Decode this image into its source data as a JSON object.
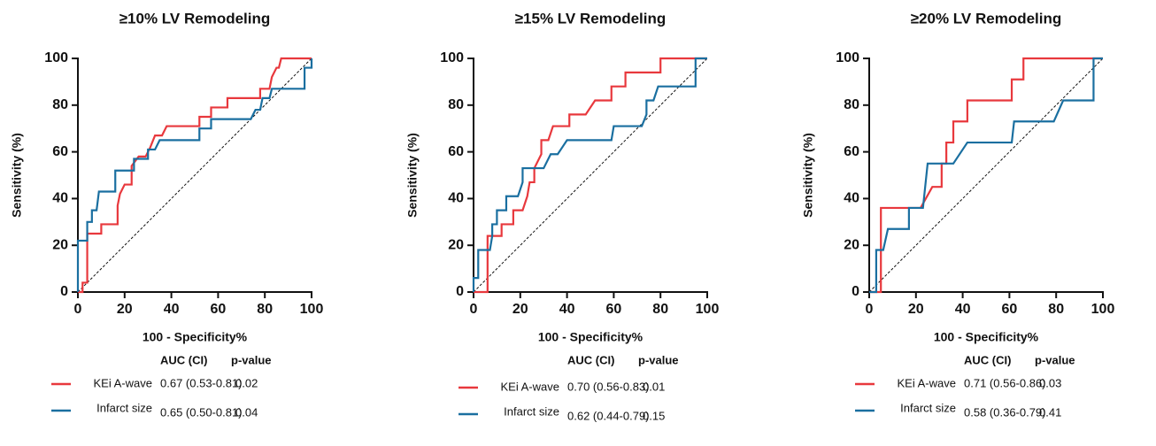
{
  "chart_data": [
    {
      "type": "line",
      "title": "≥10% LV Remodeling",
      "x_label": "100 - Specificity%",
      "y_label": "Sensitivity (%)",
      "xlim": [
        0,
        100
      ],
      "ylim": [
        0,
        100
      ],
      "xticks": [
        0,
        20,
        40,
        60,
        80,
        100
      ],
      "yticks": [
        0,
        20,
        40,
        60,
        80,
        100
      ],
      "reference_line": true,
      "legend_headers": [
        "AUC (CI)",
        "p-value"
      ],
      "series": [
        {
          "name": "KEi A-wave",
          "color": "#e8383d",
          "auc": "0.67 (0.53-0.81)",
          "p_value": "0.02",
          "x": [
            0,
            2,
            2,
            4,
            4,
            10,
            10,
            17,
            17,
            18,
            20,
            23,
            23,
            26,
            29,
            31,
            33,
            36,
            38,
            52,
            52,
            57,
            57,
            64,
            64,
            78,
            78,
            82,
            83,
            85,
            86,
            87,
            100
          ],
          "values": [
            0,
            0,
            4,
            4,
            25,
            25,
            29,
            29,
            37,
            42,
            46,
            46,
            54,
            58,
            58,
            62,
            67,
            67,
            71,
            71,
            75,
            75,
            79,
            79,
            83,
            83,
            87,
            87,
            92,
            96,
            96,
            100,
            100
          ]
        },
        {
          "name": "Infarct size",
          "color": "#1a6fa0",
          "auc": "0.65 (0.50-0.81)",
          "p_value": "0.04",
          "x": [
            0,
            0,
            4,
            4,
            6,
            6,
            8,
            9,
            16,
            16,
            24,
            24,
            30,
            30,
            33,
            35,
            52,
            52,
            57,
            57,
            74,
            76,
            78,
            79,
            82,
            83,
            97,
            97,
            100,
            100
          ],
          "values": [
            0,
            22,
            22,
            30,
            30,
            35,
            35,
            43,
            43,
            52,
            52,
            57,
            57,
            61,
            61,
            65,
            65,
            70,
            70,
            74,
            74,
            78,
            78,
            83,
            83,
            87,
            87,
            96,
            96,
            100
          ]
        }
      ]
    },
    {
      "type": "line",
      "title": "≥15% LV Remodeling",
      "x_label": "100 - Specificity%",
      "y_label": "Sensitivity (%)",
      "xlim": [
        0,
        100
      ],
      "ylim": [
        0,
        100
      ],
      "xticks": [
        0,
        20,
        40,
        60,
        80,
        100
      ],
      "yticks": [
        0,
        20,
        40,
        60,
        80,
        100
      ],
      "reference_line": true,
      "legend_headers": [
        "AUC (CI)",
        "p-value"
      ],
      "series": [
        {
          "name": "KEi A-wave",
          "color": "#e8383d",
          "auc": "0.70 (0.56-0.83)",
          "p_value": "0.01",
          "x": [
            0,
            6,
            6,
            12,
            12,
            17,
            17,
            21,
            23,
            24,
            26,
            26,
            29,
            29,
            32,
            34,
            41,
            41,
            48,
            52,
            59,
            59,
            65,
            65,
            80,
            80,
            100
          ],
          "values": [
            0,
            0,
            24,
            24,
            29,
            29,
            35,
            35,
            41,
            47,
            47,
            53,
            59,
            65,
            65,
            71,
            71,
            76,
            76,
            82,
            82,
            88,
            88,
            94,
            94,
            100,
            100
          ]
        },
        {
          "name": "Infarct size",
          "color": "#1a6fa0",
          "auc": "0.62 (0.44-0.79)",
          "p_value": "0.15",
          "x": [
            0,
            0,
            2,
            2,
            7,
            8,
            8,
            10,
            10,
            14,
            14,
            19,
            21,
            21,
            30,
            33,
            36,
            40,
            59,
            60,
            72,
            74,
            74,
            77,
            79,
            95,
            95,
            100
          ],
          "values": [
            0,
            6,
            6,
            18,
            18,
            24,
            29,
            29,
            35,
            35,
            41,
            41,
            47,
            53,
            53,
            59,
            59,
            65,
            65,
            71,
            71,
            76,
            82,
            82,
            88,
            88,
            100,
            100
          ]
        }
      ]
    },
    {
      "type": "line",
      "title": "≥20% LV Remodeling",
      "x_label": "100 - Specificity%",
      "y_label": "Sensitivity (%)",
      "xlim": [
        0,
        100
      ],
      "ylim": [
        0,
        100
      ],
      "xticks": [
        0,
        20,
        40,
        60,
        80,
        100
      ],
      "yticks": [
        0,
        20,
        40,
        60,
        80,
        100
      ],
      "reference_line": true,
      "legend_headers": [
        "AUC (CI)",
        "p-value"
      ],
      "series": [
        {
          "name": "KEi A-wave",
          "color": "#e8383d",
          "auc": "0.71 (0.56-0.86)",
          "p_value": "0.03",
          "x": [
            0,
            5,
            5,
            22,
            27,
            31,
            31,
            33,
            33,
            36,
            36,
            42,
            42,
            61,
            61,
            66,
            66,
            100
          ],
          "values": [
            0,
            0,
            36,
            36,
            45,
            45,
            55,
            55,
            64,
            64,
            73,
            73,
            82,
            82,
            91,
            91,
            100,
            100
          ]
        },
        {
          "name": "Infarct size",
          "color": "#1a6fa0",
          "auc": "0.58 (0.36-0.79)",
          "p_value": "0.41",
          "x": [
            0,
            3,
            3,
            6,
            8,
            17,
            17,
            23,
            25,
            36,
            42,
            61,
            62,
            79,
            83,
            96,
            96,
            100
          ],
          "values": [
            0,
            0,
            18,
            18,
            27,
            27,
            36,
            36,
            55,
            55,
            64,
            64,
            73,
            73,
            82,
            82,
            100,
            100
          ]
        }
      ]
    }
  ]
}
